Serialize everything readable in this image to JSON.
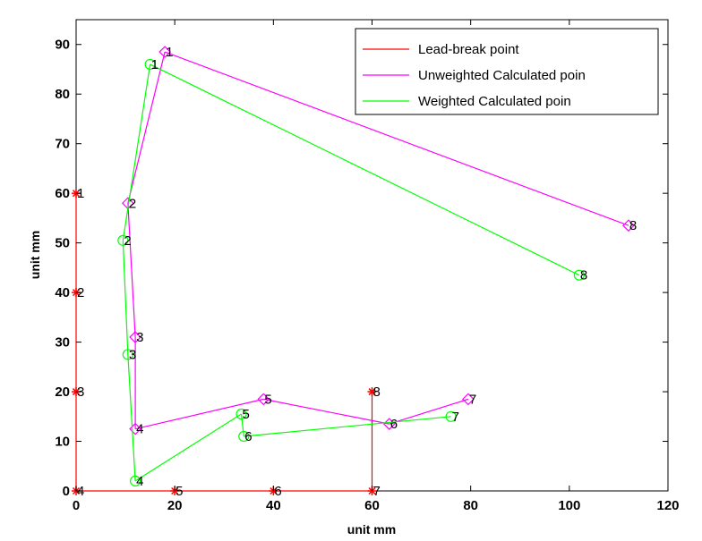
{
  "chart_data": {
    "type": "line",
    "title": "",
    "xlabel": "unit mm",
    "ylabel": "unit mm",
    "xlim": [
      0,
      120
    ],
    "ylim": [
      0,
      95
    ],
    "xticks": [
      0,
      20,
      40,
      60,
      80,
      100,
      120
    ],
    "yticks": [
      0,
      10,
      20,
      30,
      40,
      50,
      60,
      70,
      80,
      90
    ],
    "grid": false,
    "legend_position": "top-right",
    "series": [
      {
        "name": "Lead-break point",
        "color": "#ff0000",
        "marker": "asterisk",
        "connect": "segments",
        "segments": [
          [
            1,
            4
          ],
          [
            4,
            7
          ],
          [
            7,
            8
          ]
        ],
        "points": [
          {
            "label": "1",
            "x": 0,
            "y": 60
          },
          {
            "label": "2",
            "x": 0,
            "y": 40
          },
          {
            "label": "3",
            "x": 0,
            "y": 20
          },
          {
            "label": "4",
            "x": 0,
            "y": 0
          },
          {
            "label": "5",
            "x": 20,
            "y": 0
          },
          {
            "label": "6",
            "x": 40,
            "y": 0
          },
          {
            "label": "7",
            "x": 60,
            "y": 0
          },
          {
            "label": "8",
            "x": 60,
            "y": 20
          }
        ]
      },
      {
        "name": "Unweighted Calculated poin",
        "color": "#ff00ff",
        "marker": "diamond",
        "connect": "polyline",
        "polyline": [
          [
            8,
            1
          ],
          [
            1,
            2
          ],
          [
            2,
            3
          ],
          [
            3,
            4
          ],
          [
            4,
            5
          ],
          [
            5,
            6
          ],
          [
            6,
            7
          ]
        ],
        "points": [
          {
            "label": "1",
            "x": 18,
            "y": 88.5
          },
          {
            "label": "2",
            "x": 10.5,
            "y": 58
          },
          {
            "label": "3",
            "x": 12,
            "y": 31
          },
          {
            "label": "4",
            "x": 12,
            "y": 12.5
          },
          {
            "label": "5",
            "x": 38,
            "y": 18.5
          },
          {
            "label": "6",
            "x": 63.5,
            "y": 13.5
          },
          {
            "label": "7",
            "x": 79.5,
            "y": 18.5
          },
          {
            "label": "8",
            "x": 112,
            "y": 53.5
          }
        ]
      },
      {
        "name": "Weighted Calculated poin",
        "color": "#00ff00",
        "marker": "circle",
        "connect": "polyline",
        "polyline": [
          [
            8,
            1
          ],
          [
            1,
            2
          ],
          [
            2,
            3
          ],
          [
            3,
            4
          ],
          [
            4,
            5
          ],
          [
            5,
            6
          ],
          [
            6,
            7
          ]
        ],
        "points": [
          {
            "label": "1",
            "x": 15,
            "y": 86
          },
          {
            "label": "2",
            "x": 9.5,
            "y": 50.5
          },
          {
            "label": "3",
            "x": 10.5,
            "y": 27.5
          },
          {
            "label": "4",
            "x": 12,
            "y": 2
          },
          {
            "label": "5",
            "x": 33.5,
            "y": 15.5
          },
          {
            "label": "6",
            "x": 34,
            "y": 11
          },
          {
            "label": "7",
            "x": 76,
            "y": 15
          },
          {
            "label": "8",
            "x": 102,
            "y": 43.5
          }
        ]
      }
    ]
  }
}
